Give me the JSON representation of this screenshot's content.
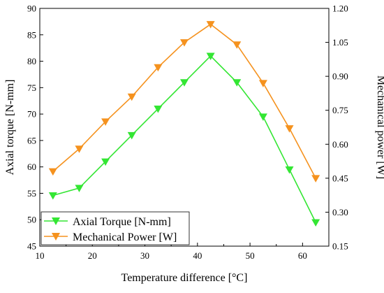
{
  "chart_data": {
    "type": "line",
    "x": [
      12.5,
      17.5,
      22.5,
      27.5,
      32.5,
      37.5,
      42.5,
      47.5,
      52.5,
      57.5,
      62.5
    ],
    "xlabel": "Temperature difference [°C]",
    "xlim": [
      10,
      65
    ],
    "xticks": [
      10,
      20,
      30,
      40,
      50,
      60
    ],
    "ylabel_left": "Axial torque [N-mm]",
    "ylim_left": [
      45,
      90
    ],
    "yticks_left": [
      45,
      50,
      55,
      60,
      65,
      70,
      75,
      80,
      85,
      90
    ],
    "ylabel_right": "Mechanical power [W]",
    "ylim_right": [
      0.15,
      1.2
    ],
    "yticks_right": [
      "0.15",
      "0.30",
      "0.45",
      "0.60",
      "0.75",
      "0.90",
      "1.05",
      "1.20"
    ],
    "grid": false,
    "legend_position": "bottom-left",
    "series": [
      {
        "name": "Axial Torque [N-mm]",
        "axis": "left",
        "color": "#33e633",
        "marker": "triangle-down",
        "values": [
          54.6,
          56.0,
          61.0,
          66.0,
          71.0,
          76.0,
          81.0,
          76.0,
          69.5,
          59.5,
          49.5
        ]
      },
      {
        "name": "Mechanical Power [W]",
        "axis": "right",
        "color": "#f5921e",
        "marker": "triangle-down",
        "values": [
          0.48,
          0.58,
          0.7,
          0.81,
          0.94,
          1.05,
          1.13,
          1.04,
          0.87,
          0.67,
          0.45
        ]
      }
    ]
  }
}
